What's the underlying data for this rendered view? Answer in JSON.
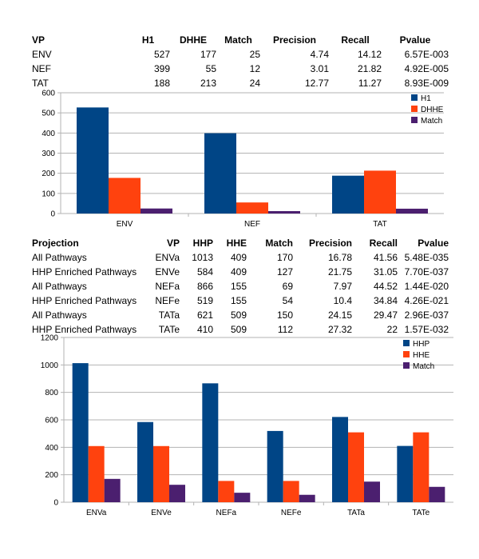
{
  "table1": {
    "headers": [
      "VP",
      "H1",
      "DHHE",
      "Match",
      "Precision",
      "Recall",
      "Pvalue"
    ],
    "rows": [
      [
        "ENV",
        "527",
        "177",
        "25",
        "4.74",
        "14.12",
        "6.57E-003"
      ],
      [
        "NEF",
        "399",
        "55",
        "12",
        "3.01",
        "21.82",
        "4.92E-005"
      ],
      [
        "TAT",
        "188",
        "213",
        "24",
        "12.77",
        "11.27",
        "8.93E-009"
      ]
    ]
  },
  "table2": {
    "headers": [
      "Projection",
      "VP",
      "HHP",
      "HHE",
      "Match",
      "Precision",
      "Recall",
      "Pvalue"
    ],
    "rows": [
      [
        "All Pathways",
        "ENVa",
        "1013",
        "409",
        "170",
        "16.78",
        "41.56",
        "5.48E-035"
      ],
      [
        "HHP Enriched Pathways",
        "ENVe",
        "584",
        "409",
        "127",
        "21.75",
        "31.05",
        "7.70E-037"
      ],
      [
        "All Pathways",
        "NEFa",
        "866",
        "155",
        "69",
        "7.97",
        "44.52",
        "1.44E-020"
      ],
      [
        "HHP Enriched Pathways",
        "NEFe",
        "519",
        "155",
        "54",
        "10.4",
        "34.84",
        "4.26E-021"
      ],
      [
        "All Pathways",
        "TATa",
        "621",
        "509",
        "150",
        "24.15",
        "29.47",
        "2.96E-037"
      ],
      [
        "HHP Enriched Pathways",
        "TATe",
        "410",
        "509",
        "112",
        "27.32",
        "22",
        "1.57E-032"
      ]
    ]
  },
  "colors": {
    "series1": "#004586",
    "series2": "#ff420e",
    "series3": "#4b1f6f",
    "grid": "#b3b3b3"
  },
  "chart_data": [
    {
      "type": "bar",
      "categories": [
        "ENV",
        "NEF",
        "TAT"
      ],
      "series": [
        {
          "name": "H1",
          "values": [
            527,
            399,
            188
          ]
        },
        {
          "name": "DHHE",
          "values": [
            177,
            55,
            213
          ]
        },
        {
          "name": "Match",
          "values": [
            25,
            12,
            24
          ]
        }
      ],
      "ylim": [
        0,
        600
      ],
      "yticks": [
        "0",
        "100",
        "200",
        "300",
        "400",
        "500",
        "600"
      ],
      "grid": true,
      "legend": "top-right"
    },
    {
      "type": "bar",
      "categories": [
        "ENVa",
        "ENVe",
        "NEFa",
        "NEFe",
        "TATa",
        "TATe"
      ],
      "series": [
        {
          "name": "HHP",
          "values": [
            1013,
            584,
            866,
            519,
            621,
            410
          ]
        },
        {
          "name": "HHE",
          "values": [
            409,
            409,
            155,
            155,
            509,
            509
          ]
        },
        {
          "name": "Match",
          "values": [
            170,
            127,
            69,
            54,
            150,
            112
          ]
        }
      ],
      "ylim": [
        0,
        1200
      ],
      "yticks": [
        "0",
        "200",
        "400",
        "600",
        "800",
        "1000",
        "1200"
      ],
      "grid": true,
      "legend": "top-right"
    }
  ]
}
